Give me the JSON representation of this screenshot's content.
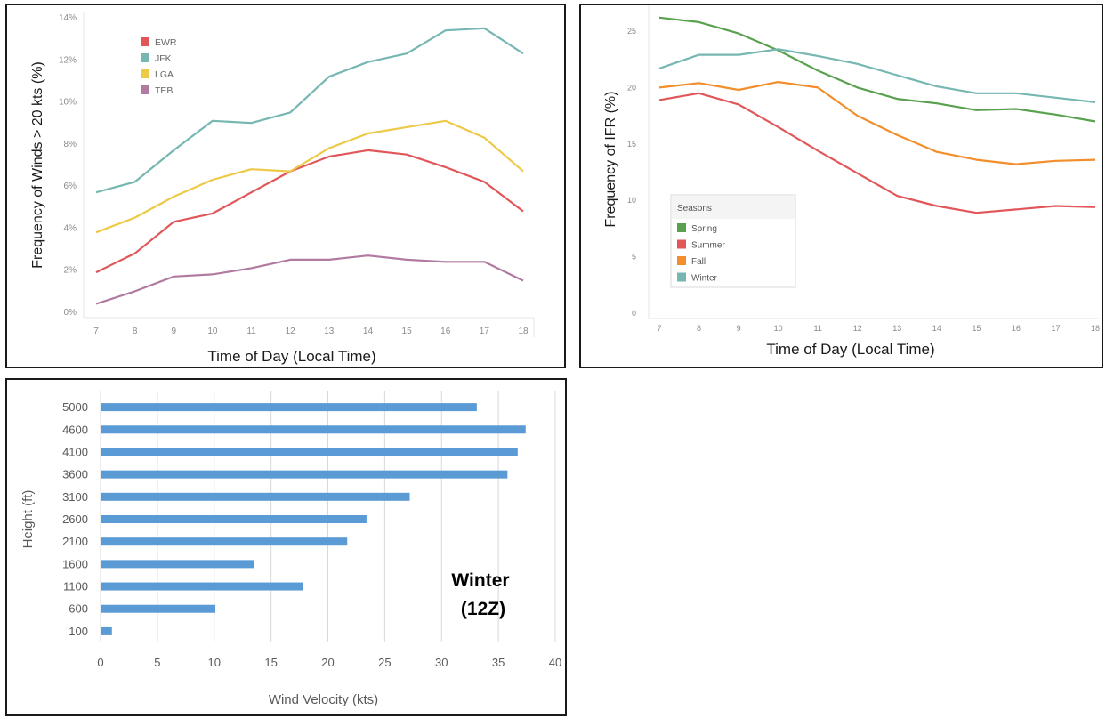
{
  "chart_data": [
    {
      "type": "line",
      "xlabel": "Time of Day (Local Time)",
      "ylabel": "Frequency of Winds > 20 kts (%)",
      "x": [
        7,
        8,
        9,
        10,
        11,
        12,
        13,
        14,
        15,
        16,
        17,
        18
      ],
      "ylim": [
        0,
        14
      ],
      "yticks": [
        "0%",
        "2%",
        "4%",
        "6%",
        "8%",
        "10%",
        "12%",
        "14%"
      ],
      "grid": false,
      "legend_position": "top-left",
      "series": [
        {
          "name": "EWR",
          "color": "#e15759",
          "values": [
            1.9,
            2.8,
            4.3,
            4.7,
            5.7,
            6.7,
            7.4,
            7.7,
            7.5,
            6.9,
            6.2,
            4.8
          ]
        },
        {
          "name": "JFK",
          "color": "#76b7b2",
          "values": [
            5.7,
            6.2,
            7.7,
            9.1,
            9.0,
            9.5,
            11.2,
            11.9,
            12.3,
            13.4,
            13.5,
            12.3
          ]
        },
        {
          "name": "LGA",
          "color": "#edc948",
          "values": [
            3.8,
            4.5,
            5.5,
            6.3,
            6.8,
            6.7,
            7.8,
            8.5,
            8.8,
            9.1,
            8.3,
            6.7
          ]
        },
        {
          "name": "TEB",
          "color": "#b07aa1",
          "values": [
            0.4,
            1.0,
            1.7,
            1.8,
            2.1,
            2.5,
            2.5,
            2.7,
            2.5,
            2.4,
            2.4,
            1.5
          ]
        }
      ]
    },
    {
      "type": "line",
      "xlabel": "Time of Day (Local Time)",
      "ylabel": "Frequency of IFR (%)",
      "x": [
        7,
        8,
        9,
        10,
        11,
        12,
        13,
        14,
        15,
        16,
        17,
        18
      ],
      "ylim": [
        0,
        26.5
      ],
      "yticks": [
        0,
        5,
        10,
        15,
        20,
        25
      ],
      "grid": false,
      "legend_title": "Seasons",
      "legend_position": "bottom-left",
      "series": [
        {
          "name": "Spring",
          "color": "#59a14f",
          "values": [
            26.2,
            25.8,
            24.8,
            23.3,
            21.5,
            20.0,
            19.0,
            18.6,
            18.0,
            18.1,
            17.6,
            17.0
          ]
        },
        {
          "name": "Summer",
          "color": "#e15759",
          "values": [
            18.9,
            19.5,
            18.5,
            16.5,
            14.4,
            12.4,
            10.4,
            9.5,
            8.9,
            9.2,
            9.5,
            9.4
          ]
        },
        {
          "name": "Fall",
          "color": "#f28e2b",
          "values": [
            20.0,
            20.4,
            19.8,
            20.5,
            20.0,
            17.5,
            15.8,
            14.3,
            13.6,
            13.2,
            13.5,
            13.6
          ]
        },
        {
          "name": "Winter",
          "color": "#76b7b2",
          "values": [
            21.7,
            22.9,
            22.9,
            23.4,
            22.8,
            22.1,
            21.1,
            20.1,
            19.5,
            19.5,
            19.1,
            18.7
          ]
        }
      ]
    },
    {
      "type": "bar",
      "orientation": "horizontal",
      "xlabel": "Wind Velocity (kts)",
      "ylabel": "Height (ft)",
      "annotation": [
        "Winter",
        "(12Z)"
      ],
      "categories": [
        "100",
        "600",
        "1100",
        "1600",
        "2100",
        "2600",
        "3100",
        "3600",
        "4100",
        "4600",
        "5000"
      ],
      "values": [
        1.0,
        10.1,
        17.8,
        13.5,
        21.7,
        23.4,
        27.2,
        35.8,
        36.7,
        37.4,
        33.1
      ],
      "xlim": [
        0,
        40
      ],
      "xticks": [
        0,
        5,
        10,
        15,
        20,
        25,
        30,
        35,
        40
      ],
      "grid": true,
      "color": "#5b9bd5"
    }
  ]
}
